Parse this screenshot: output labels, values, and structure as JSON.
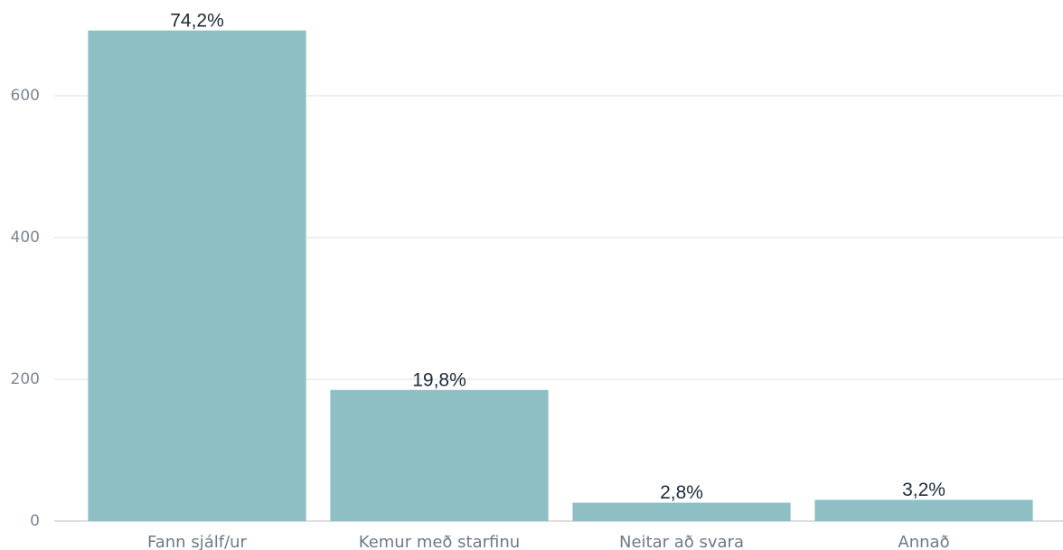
{
  "chart_data": {
    "type": "bar",
    "categories": [
      "Fann sjálf/ur",
      "Kemur með starfinu",
      "Neitar að svara",
      "Annað"
    ],
    "values": [
      692,
      185,
      26,
      30
    ],
    "percent_labels": [
      "74,2%",
      "19,8%",
      "2,8%",
      "3,2%"
    ],
    "color": "#8dbfc5",
    "ylim": [
      0,
      735
    ],
    "yticks": [
      0,
      200,
      400,
      600
    ],
    "grid": true
  }
}
